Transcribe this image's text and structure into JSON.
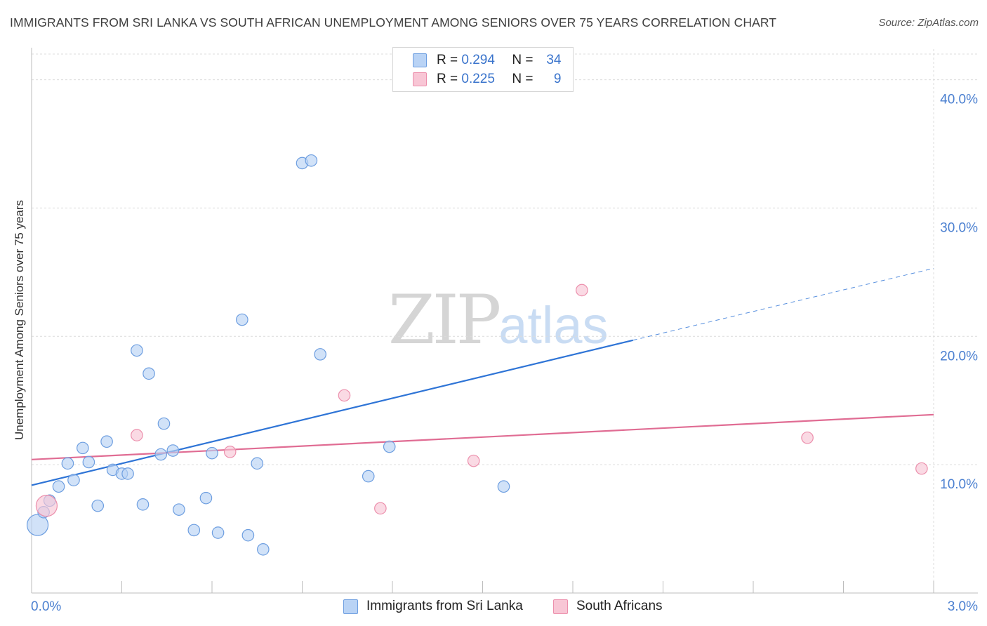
{
  "title": "IMMIGRANTS FROM SRI LANKA VS SOUTH AFRICAN UNEMPLOYMENT AMONG SENIORS OVER 75 YEARS CORRELATION CHART",
  "source": "Source: ZipAtlas.com",
  "watermark": {
    "zip": "ZIP",
    "atlas": "atlas"
  },
  "legend": [
    {
      "name": "Immigrants from Sri Lanka",
      "r_label": "R =",
      "r": "0.294",
      "n_label": "N =",
      "n": "34"
    },
    {
      "name": "South Africans",
      "r_label": "R =",
      "r": "0.225",
      "n_label": "N =",
      "n": "9"
    }
  ],
  "colors": {
    "blue_fill": "#b9d3f5",
    "blue_stroke": "#6d9ee0",
    "blue_line": "#2e74d6",
    "pink_fill": "#f8c6d5",
    "pink_stroke": "#ec8fac",
    "pink_line": "#e06c93",
    "tick_text": "#4a7fd0",
    "grid": "#dcdcdc"
  },
  "chart_data": {
    "type": "scatter",
    "title": "IMMIGRANTS FROM SRI LANKA VS SOUTH AFRICAN UNEMPLOYMENT AMONG SENIORS OVER 75 YEARS CORRELATION CHART",
    "xlabel": "",
    "ylabel": "Unemployment Among Seniors over 75 years",
    "xlim": [
      0,
      3.0
    ],
    "ylim": [
      0,
      42
    ],
    "x_tick_labels": [
      "0.0%",
      "3.0%"
    ],
    "y_ticks": [
      10,
      20,
      30,
      40
    ],
    "y_tick_labels": [
      "10.0%",
      "20.0%",
      "30.0%",
      "40.0%"
    ],
    "grid": true,
    "series": [
      {
        "name": "Immigrants from Sri Lanka",
        "color": "blue",
        "points": [
          {
            "x": 0.02,
            "y": 5.3,
            "big": true
          },
          {
            "x": 0.04,
            "y": 6.3
          },
          {
            "x": 0.06,
            "y": 7.2
          },
          {
            "x": 0.09,
            "y": 8.3
          },
          {
            "x": 0.12,
            "y": 10.1
          },
          {
            "x": 0.14,
            "y": 8.8
          },
          {
            "x": 0.17,
            "y": 11.3
          },
          {
            "x": 0.19,
            "y": 10.2
          },
          {
            "x": 0.22,
            "y": 6.8
          },
          {
            "x": 0.25,
            "y": 11.8
          },
          {
            "x": 0.27,
            "y": 9.6
          },
          {
            "x": 0.3,
            "y": 9.3
          },
          {
            "x": 0.32,
            "y": 9.3
          },
          {
            "x": 0.35,
            "y": 18.9
          },
          {
            "x": 0.37,
            "y": 6.9
          },
          {
            "x": 0.39,
            "y": 17.1
          },
          {
            "x": 0.43,
            "y": 10.8
          },
          {
            "x": 0.44,
            "y": 13.2
          },
          {
            "x": 0.47,
            "y": 11.1
          },
          {
            "x": 0.49,
            "y": 6.5
          },
          {
            "x": 0.54,
            "y": 4.9
          },
          {
            "x": 0.58,
            "y": 7.4
          },
          {
            "x": 0.6,
            "y": 10.9
          },
          {
            "x": 0.62,
            "y": 4.7
          },
          {
            "x": 0.7,
            "y": 21.3
          },
          {
            "x": 0.72,
            "y": 4.5
          },
          {
            "x": 0.75,
            "y": 10.1
          },
          {
            "x": 0.77,
            "y": 3.4
          },
          {
            "x": 0.9,
            "y": 33.5
          },
          {
            "x": 0.93,
            "y": 33.7
          },
          {
            "x": 0.96,
            "y": 18.6
          },
          {
            "x": 1.12,
            "y": 9.1
          },
          {
            "x": 1.19,
            "y": 11.4
          },
          {
            "x": 1.57,
            "y": 8.3
          }
        ],
        "trend": {
          "x0": 0.0,
          "y0": 8.4,
          "x1": 2.0,
          "y1": 19.7,
          "dash_to_x": 3.0,
          "dash_to_y": 25.3
        }
      },
      {
        "name": "South Africans",
        "color": "pink",
        "points": [
          {
            "x": 0.05,
            "y": 6.8,
            "big": true
          },
          {
            "x": 0.35,
            "y": 12.3
          },
          {
            "x": 0.66,
            "y": 11.0
          },
          {
            "x": 1.04,
            "y": 15.4
          },
          {
            "x": 1.16,
            "y": 6.6
          },
          {
            "x": 1.47,
            "y": 10.3
          },
          {
            "x": 1.83,
            "y": 23.6
          },
          {
            "x": 2.58,
            "y": 12.1
          },
          {
            "x": 2.96,
            "y": 9.7
          }
        ],
        "trend": {
          "x0": 0.0,
          "y0": 10.4,
          "x1": 3.0,
          "y1": 13.9
        }
      }
    ]
  }
}
